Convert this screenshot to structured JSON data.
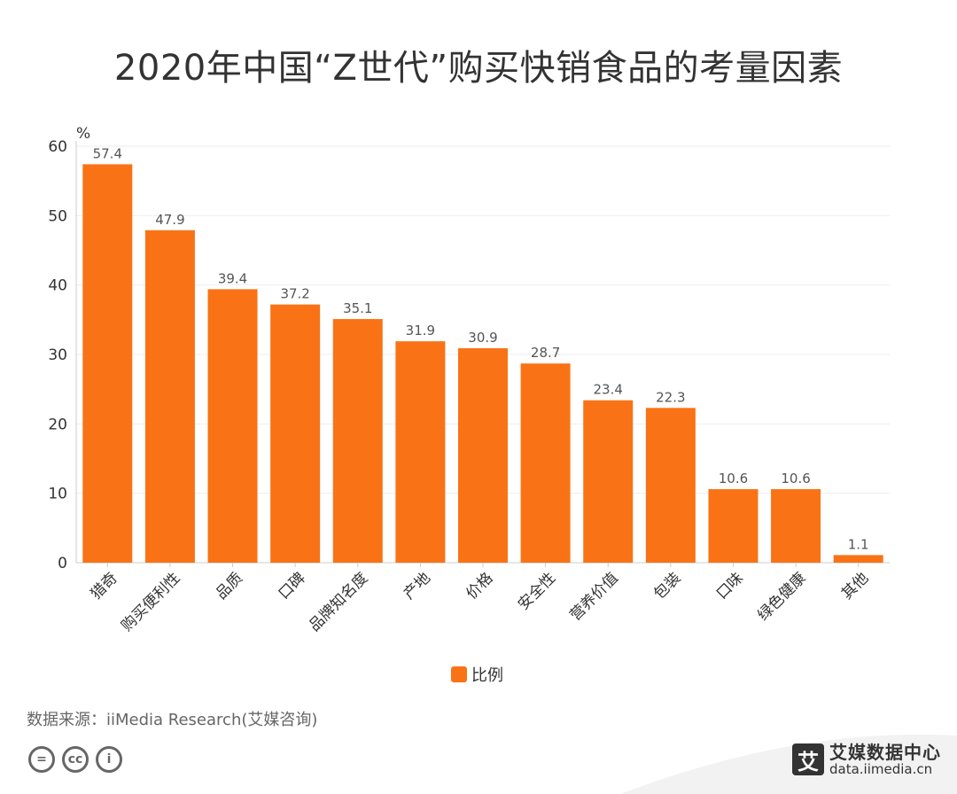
{
  "title": "2020年中国“Z世代”购买快销食品的考量因素",
  "source": "数据来源：iiMedia Research(艾媒咨询)",
  "brand": {
    "logo_text": "艾",
    "name": "艾媒数据中心",
    "url": "data.iimedia.cn"
  },
  "license_icons": [
    "equals-icon",
    "cc-icon",
    "person-icon"
  ],
  "license_glyphs": [
    "=",
    "cc",
    "i"
  ],
  "chart_data": {
    "type": "bar",
    "title": "2020年中国“Z世代”购买快销食品的考量因素",
    "ylabel": "%",
    "xlabel": "",
    "ylim": [
      0,
      60
    ],
    "yticks": [
      0,
      10,
      20,
      30,
      40,
      50,
      60
    ],
    "grid": true,
    "legend_position": "bottom",
    "bar_color": "#F97316",
    "categories": [
      "猎奇",
      "购买便利性",
      "品质",
      "口碑",
      "品牌知名度",
      "产地",
      "价格",
      "安全性",
      "营养价值",
      "包装",
      "口味",
      "绿色健康",
      "其他"
    ],
    "series": [
      {
        "name": "比例",
        "values": [
          57.4,
          47.9,
          39.4,
          37.2,
          35.1,
          31.9,
          30.9,
          28.7,
          23.4,
          22.3,
          10.6,
          10.6,
          1.1
        ]
      }
    ]
  }
}
